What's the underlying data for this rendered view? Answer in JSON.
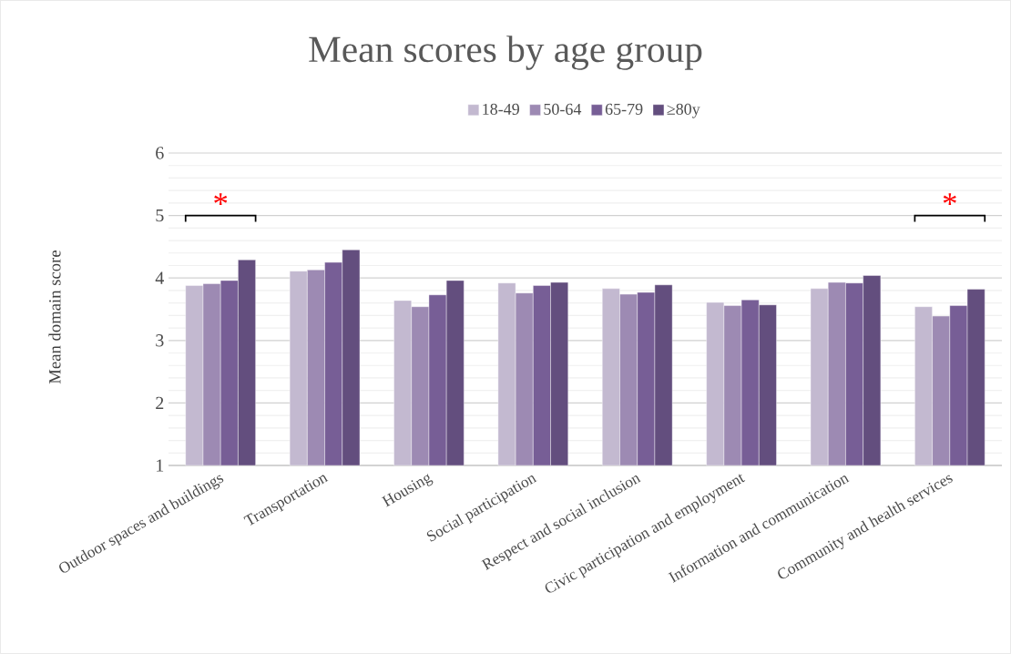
{
  "chart_data": {
    "type": "bar",
    "title": "Mean scores by age group",
    "ylabel": "Mean domain score",
    "categories": [
      "Outdoor spaces and buildings",
      "Transportation",
      "Housing",
      "Social participation",
      "Respect and social inclusion",
      "Civic participation and employment",
      "Information and communication",
      "Community and health services"
    ],
    "series": [
      {
        "name": "18-49",
        "color": "#c3b9d0",
        "values": [
          3.88,
          4.11,
          3.64,
          3.92,
          3.83,
          3.61,
          3.83,
          3.54
        ]
      },
      {
        "name": "50-64",
        "color": "#9d8ab3",
        "values": [
          3.91,
          4.13,
          3.54,
          3.76,
          3.74,
          3.56,
          3.93,
          3.39
        ]
      },
      {
        "name": "65-79",
        "color": "#775e96",
        "values": [
          3.96,
          4.25,
          3.73,
          3.88,
          3.77,
          3.65,
          3.92,
          3.56
        ]
      },
      {
        "name": "≥80y",
        "color": "#634e7e",
        "values": [
          4.29,
          4.45,
          3.96,
          3.93,
          3.89,
          3.57,
          4.04,
          3.82
        ]
      }
    ],
    "ylim": [
      1,
      6
    ],
    "yticks": [
      1,
      2,
      3,
      4,
      5,
      6
    ],
    "grid": true,
    "legend": "top",
    "annotations": [
      "*",
      "*"
    ]
  }
}
